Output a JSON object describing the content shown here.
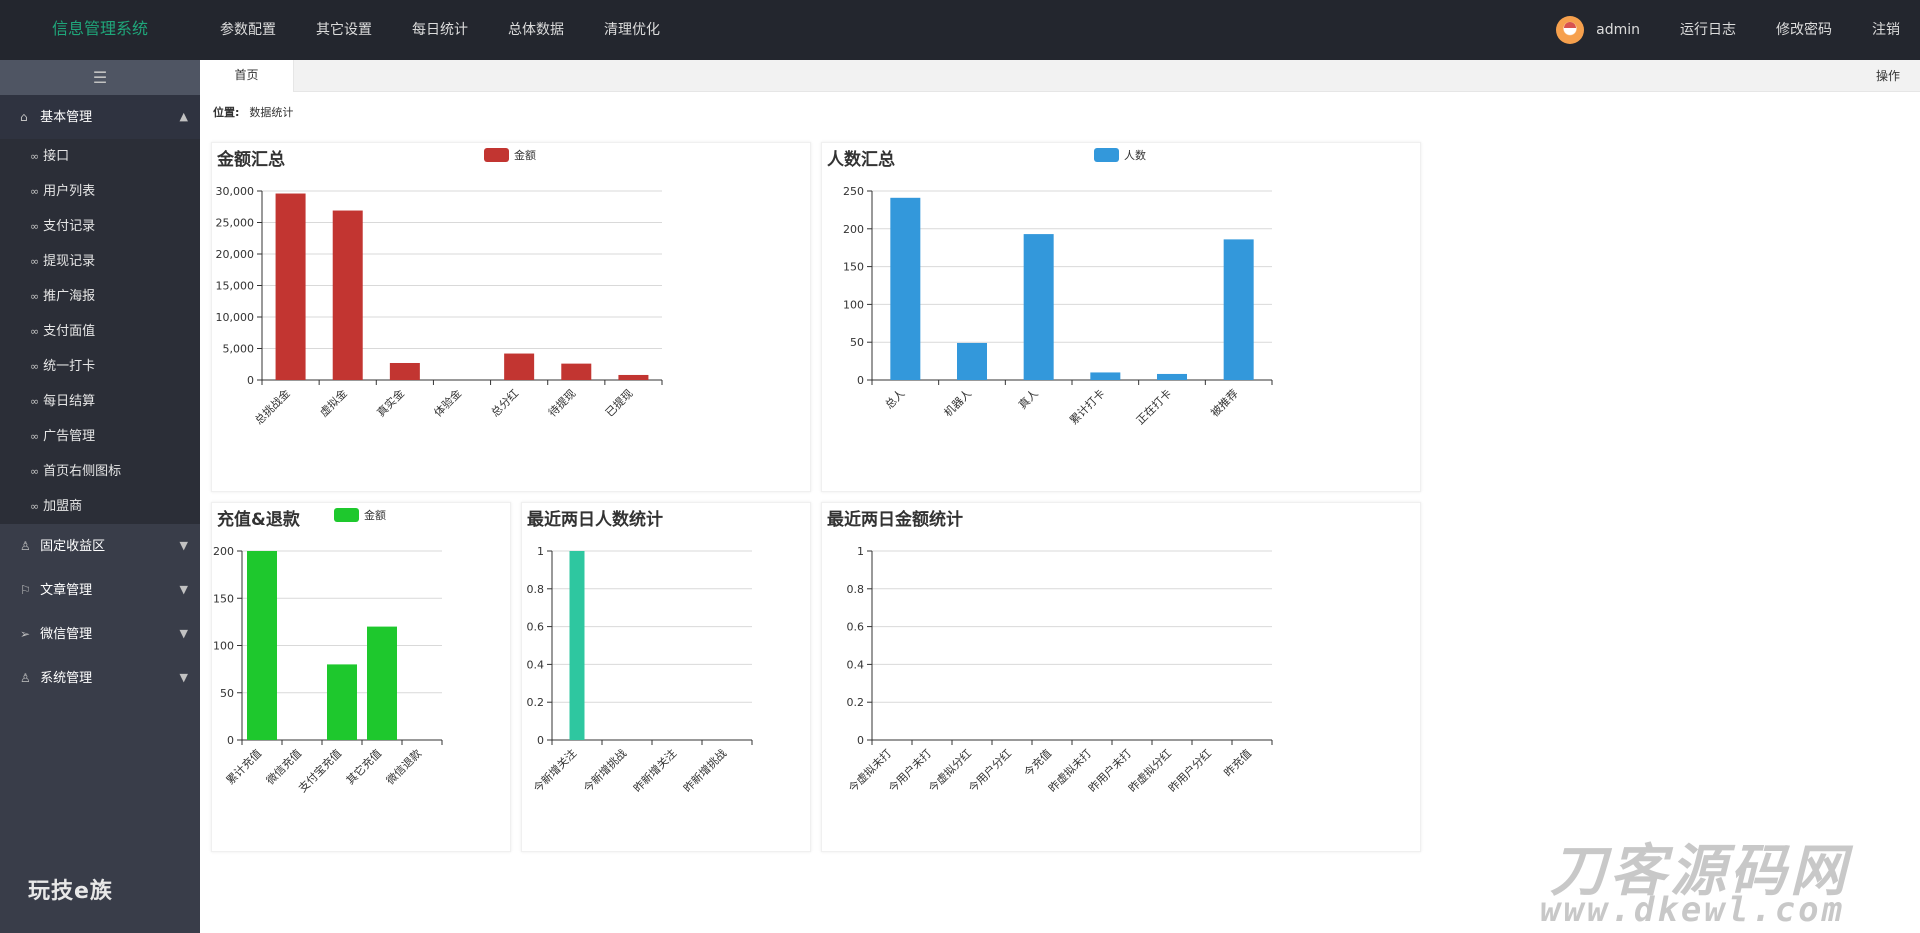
{
  "app": {
    "title": "信息管理系统"
  },
  "top_nav": [
    "参数配置",
    "其它设置",
    "每日统计",
    "总体数据",
    "清理优化"
  ],
  "top_right": {
    "user": "admin",
    "items": [
      "运行日志",
      "修改密码",
      "注销"
    ]
  },
  "sidebar": {
    "toggle_icon": "☰",
    "groups": [
      {
        "label": "基本管理",
        "icon": "home-icon",
        "open": true,
        "items": [
          "接口",
          "用户列表",
          "支付记录",
          "提现记录",
          "推广海报",
          "支付面值",
          "统一打卡",
          "每日结算",
          "广告管理",
          "首页右侧图标",
          "加盟商"
        ]
      },
      {
        "label": "固定收益区",
        "icon": "users-icon",
        "open": false
      },
      {
        "label": "文章管理",
        "icon": "flag-icon",
        "open": false
      },
      {
        "label": "微信管理",
        "icon": "send-icon",
        "open": false
      },
      {
        "label": "系统管理",
        "icon": "user-icon",
        "open": false
      }
    ],
    "brand": "玩技e族"
  },
  "tabs": {
    "active": "首页",
    "operation": "操作"
  },
  "location": {
    "label": "位置:",
    "value": "数据统计"
  },
  "colors": {
    "red": "#c23531",
    "blue": "#3398db",
    "green": "#1ec82d",
    "teal": "#2ec7a0"
  },
  "chart_data": [
    {
      "type": "bar",
      "title": "金额汇总",
      "legend": "金额",
      "color": "#c23531",
      "categories": [
        "总挑战金",
        "虚拟金",
        "真实金",
        "体验金",
        "总分红",
        "待提现",
        "已提现"
      ],
      "values": [
        29600,
        26900,
        2700,
        0,
        4200,
        2600,
        800
      ],
      "ylim": [
        0,
        30000
      ],
      "yticks": [
        0,
        5000,
        10000,
        15000,
        20000,
        25000,
        30000
      ],
      "ytick_labels": [
        "0",
        "5,000",
        "10,000",
        "15,000",
        "20,000",
        "25,000",
        "30,000"
      ]
    },
    {
      "type": "bar",
      "title": "人数汇总",
      "legend": "人数",
      "color": "#3398db",
      "categories": [
        "总人",
        "机器人",
        "真人",
        "累计打卡",
        "正在打卡",
        "被推荐"
      ],
      "values": [
        241,
        49,
        193,
        10,
        8,
        186
      ],
      "ylim": [
        0,
        250
      ],
      "yticks": [
        0,
        50,
        100,
        150,
        200,
        250
      ],
      "ytick_labels": [
        "0",
        "50",
        "100",
        "150",
        "200",
        "250"
      ]
    },
    {
      "type": "bar",
      "title": "充值&退款",
      "legend": "金额",
      "color": "#1ec82d",
      "categories": [
        "累计充值",
        "微信充值",
        "支付宝充值",
        "其它充值",
        "微信退款"
      ],
      "values": [
        200,
        0,
        80,
        120,
        0
      ],
      "ylim": [
        0,
        200
      ],
      "yticks": [
        0,
        50,
        100,
        150,
        200
      ],
      "ytick_labels": [
        "0",
        "50",
        "100",
        "150",
        "200"
      ]
    },
    {
      "type": "bar",
      "title": "最近两日人数统计",
      "legend": "",
      "color": "#2ec7a0",
      "categories": [
        "今新增关注",
        "今新增挑战",
        "昨新增关注",
        "昨新增挑战"
      ],
      "values": [
        1,
        0,
        0,
        0
      ],
      "ylim": [
        0,
        1
      ],
      "yticks": [
        0,
        0.2,
        0.4,
        0.6,
        0.8,
        1
      ],
      "ytick_labels": [
        "0",
        "0.2",
        "0.4",
        "0.6",
        "0.8",
        "1"
      ]
    },
    {
      "type": "bar",
      "title": "最近两日金额统计",
      "legend": "",
      "color": "#3398db",
      "categories": [
        "今虚拟未打",
        "今用户未打",
        "今虚拟分红",
        "今用户分红",
        "今充值",
        "昨虚拟未打",
        "昨用户未打",
        "昨虚拟分红",
        "昨用户分红",
        "昨充值"
      ],
      "values": [
        0,
        0,
        0,
        0,
        0,
        0,
        0,
        0,
        0,
        0
      ],
      "ylim": [
        0,
        1
      ],
      "yticks": [
        0,
        0.2,
        0.4,
        0.6,
        0.8,
        1
      ],
      "ytick_labels": [
        "0",
        "0.2",
        "0.4",
        "0.6",
        "0.8",
        "1"
      ]
    }
  ],
  "watermark": {
    "line1": "刀客源码网",
    "line2": "www.dkewl.com"
  }
}
